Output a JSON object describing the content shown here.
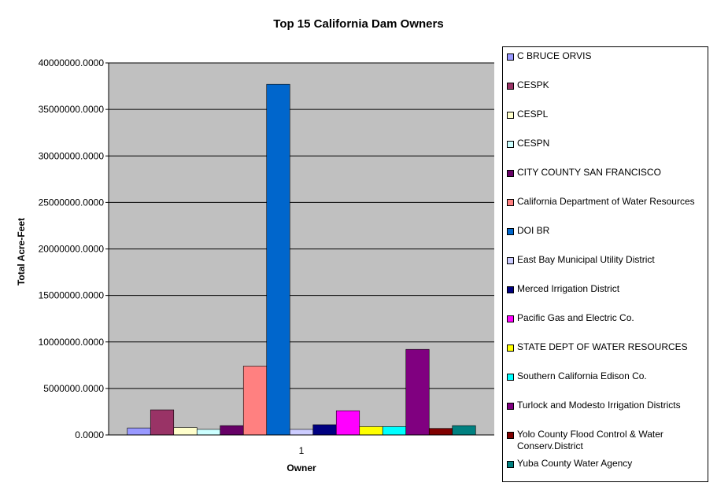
{
  "chart_data": {
    "type": "bar",
    "title": "Top 15 California Dam Owners",
    "xlabel": "Owner",
    "ylabel": "Total Acre-Feet",
    "categories": [
      "1"
    ],
    "ylim": [
      0,
      40000000
    ],
    "ytick_step": 5000000,
    "ytick_labels": [
      "0.0000",
      "5000000.0000",
      "10000000.0000",
      "15000000.0000",
      "20000000.0000",
      "25000000.0000",
      "30000000.0000",
      "35000000.0000",
      "40000000.0000"
    ],
    "grid": true,
    "legend_position": "right",
    "series": [
      {
        "name": "C BRUCE ORVIS",
        "values": [
          750000
        ],
        "color": "#9999ff"
      },
      {
        "name": "CESPK",
        "values": [
          2700000
        ],
        "color": "#993366"
      },
      {
        "name": "CESPL",
        "values": [
          800000
        ],
        "color": "#ffffcc"
      },
      {
        "name": "CESPN",
        "values": [
          600000
        ],
        "color": "#ccffff"
      },
      {
        "name": "CITY COUNTY SAN FRANCISCO",
        "values": [
          1000000
        ],
        "color": "#660066"
      },
      {
        "name": "California Department of Water Resources",
        "values": [
          7400000
        ],
        "color": "#ff8080"
      },
      {
        "name": "DOI BR",
        "values": [
          37700000
        ],
        "color": "#0066cc"
      },
      {
        "name": "East Bay Municipal Utility District",
        "values": [
          600000
        ],
        "color": "#ccccff"
      },
      {
        "name": "Merced Irrigation District",
        "values": [
          1100000
        ],
        "color": "#000080"
      },
      {
        "name": "Pacific Gas and Electric Co.",
        "values": [
          2600000
        ],
        "color": "#ff00ff"
      },
      {
        "name": "STATE DEPT OF WATER RESOURCES",
        "values": [
          900000
        ],
        "color": "#ffff00"
      },
      {
        "name": "Southern California Edison Co.",
        "values": [
          900000
        ],
        "color": "#00ffff"
      },
      {
        "name": "Turlock and Modesto Irrigation Districts",
        "values": [
          9200000
        ],
        "color": "#800080"
      },
      {
        "name": "Yolo County Flood Control & Water Conserv.District",
        "values": [
          700000
        ],
        "color": "#800000"
      },
      {
        "name": "Yuba County Water Agency",
        "values": [
          1000000
        ],
        "color": "#008080"
      }
    ]
  }
}
